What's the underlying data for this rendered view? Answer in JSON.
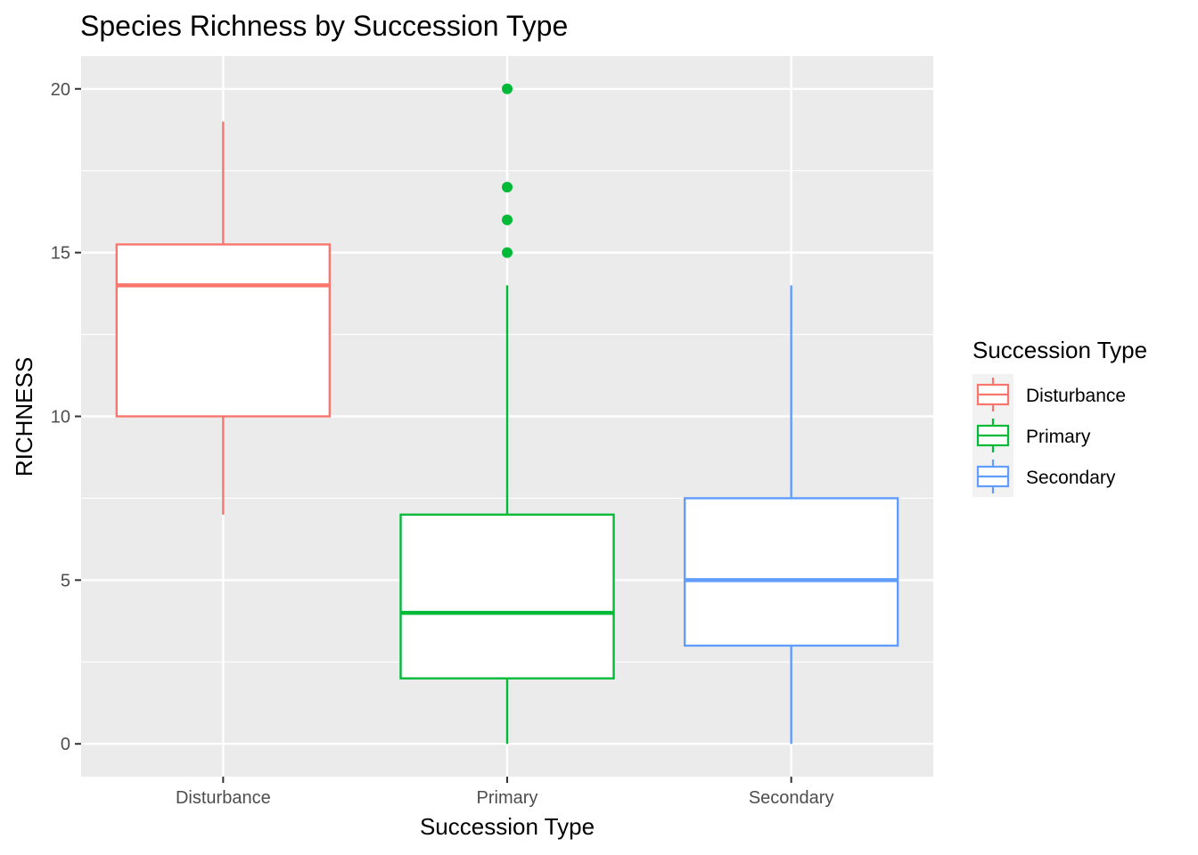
{
  "chart_data": {
    "type": "boxplot",
    "title": "Species Richness by Succession Type",
    "xlabel": "Succession Type",
    "ylabel": "RICHNESS",
    "ylim": [
      -1,
      21
    ],
    "yticks": [
      0,
      5,
      10,
      15,
      20
    ],
    "grid": true,
    "legend": {
      "title": "Succession Type",
      "placement": "right"
    },
    "categories": [
      "Disturbance",
      "Primary",
      "Secondary"
    ],
    "series": [
      {
        "name": "Disturbance",
        "color": "#F8766D",
        "whisker_low": 7,
        "q1": 10,
        "median": 14,
        "q3": 15.25,
        "whisker_high": 19,
        "outliers": []
      },
      {
        "name": "Primary",
        "color": "#00BA38",
        "whisker_low": 0,
        "q1": 2,
        "median": 4,
        "q3": 7,
        "whisker_high": 14,
        "outliers": [
          15,
          16,
          17,
          20
        ]
      },
      {
        "name": "Secondary",
        "color": "#619CFF",
        "whisker_low": 0,
        "q1": 3,
        "median": 5,
        "q3": 7.5,
        "whisker_high": 14,
        "outliers": []
      }
    ]
  }
}
